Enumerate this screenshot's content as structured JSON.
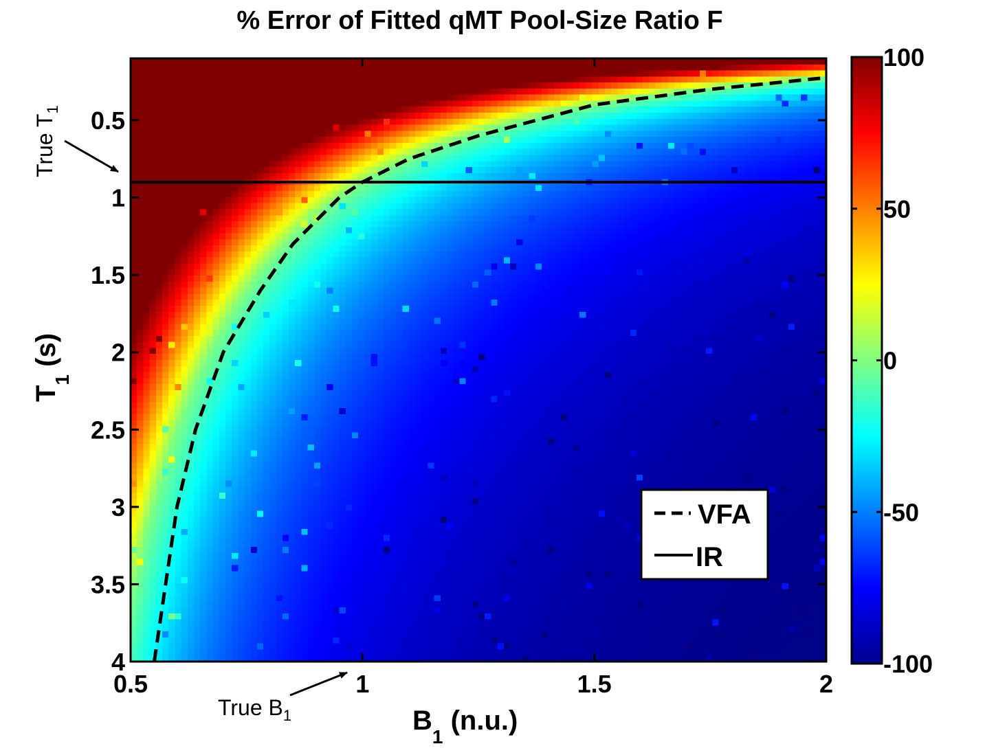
{
  "chart_data": {
    "type": "heatmap",
    "title": "% Error of Fitted qMT Pool-Size Ratio F",
    "xlabel": {
      "main": "B",
      "sub": "1",
      "rest": " (n.u.)"
    },
    "ylabel": {
      "main": "T",
      "sub": "1",
      "rest": " (s)"
    },
    "xlim": [
      0.5,
      2
    ],
    "ylim": [
      0.1,
      4
    ],
    "y_reversed": true,
    "x_ticks": [
      0.5,
      1,
      1.5,
      2
    ],
    "x_tick_labels": [
      "0.5",
      "1",
      "1.5",
      "2"
    ],
    "y_ticks": [
      0.5,
      1,
      1.5,
      2,
      2.5,
      3,
      3.5,
      4
    ],
    "y_tick_labels": [
      "0.5",
      "1",
      "1.5",
      "2",
      "2.5",
      "3",
      "3.5",
      "4"
    ],
    "colorbar": {
      "range": [
        -100,
        100
      ],
      "ticks": [
        100,
        50,
        0,
        -50,
        -100
      ],
      "tick_labels": [
        "100",
        "50",
        "0",
        "-50",
        "-100"
      ],
      "colormap": "jet"
    },
    "heatmap_model": "error(%) = 100 * (T1 * B1^2 / 0.9 - 1), clipped to [-100, 100]",
    "series": [
      {
        "name": "VFA",
        "style": "dashed",
        "color": "#000000",
        "points": [
          [
            0.551,
            4.0
          ],
          [
            0.6,
            3.0
          ],
          [
            0.64,
            2.5
          ],
          [
            0.7,
            2.0
          ],
          [
            0.78,
            1.6
          ],
          [
            0.85,
            1.3
          ],
          [
            0.95,
            1.0
          ],
          [
            1.0,
            0.9
          ],
          [
            1.1,
            0.75
          ],
          [
            1.25,
            0.6
          ],
          [
            1.5,
            0.4
          ],
          [
            1.75,
            0.3
          ],
          [
            2.0,
            0.225
          ]
        ]
      },
      {
        "name": "IR",
        "style": "solid",
        "color": "#000000",
        "points": [
          [
            0.5,
            0.9
          ],
          [
            2.0,
            0.9
          ]
        ]
      }
    ],
    "annotations": [
      {
        "main": "True T",
        "sub": "1",
        "points_to": {
          "x": 0.5,
          "y": 0.9
        }
      },
      {
        "main": "True B",
        "sub": "1",
        "points_to": {
          "x": 0.93,
          "y": 4.0
        }
      }
    ],
    "legend": {
      "placement": "lower-right",
      "entries": [
        "VFA",
        "IR"
      ]
    }
  }
}
